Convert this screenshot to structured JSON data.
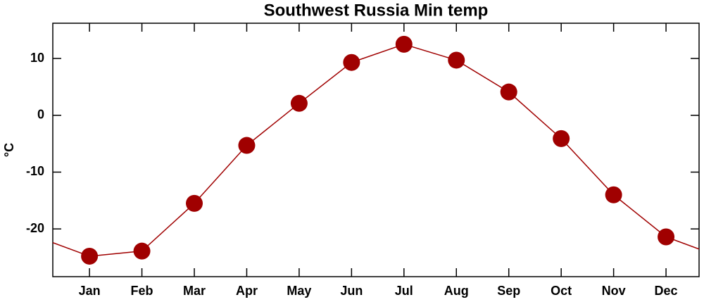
{
  "chart_data": {
    "type": "line",
    "title": "Southwest Russia Min temp",
    "y_label": "°C",
    "categories": [
      "Jan",
      "Feb",
      "Mar",
      "Apr",
      "May",
      "Jun",
      "Jul",
      "Aug",
      "Sep",
      "Oct",
      "Nov",
      "Dec"
    ],
    "values": [
      -24.8,
      -23.9,
      -15.5,
      -5.3,
      2.1,
      9.3,
      12.5,
      9.7,
      4.1,
      -4.1,
      -14.0,
      -21.4
    ],
    "color": "#a00000",
    "ylim": [
      -28.4,
      16.2
    ],
    "yticks": [
      -20,
      -10,
      0,
      10
    ]
  }
}
